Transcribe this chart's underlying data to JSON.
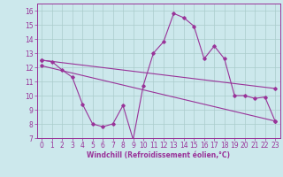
{
  "xlabel": "Windchill (Refroidissement éolien,°C)",
  "background_color": "#cce8ec",
  "grid_color": "#aacccc",
  "line_color": "#993399",
  "spine_color": "#993399",
  "xlim": [
    -0.5,
    23.5
  ],
  "ylim": [
    7,
    16.5
  ],
  "yticks": [
    7,
    8,
    9,
    10,
    11,
    12,
    13,
    14,
    15,
    16
  ],
  "xticks": [
    0,
    1,
    2,
    3,
    4,
    5,
    6,
    7,
    8,
    9,
    10,
    11,
    12,
    13,
    14,
    15,
    16,
    17,
    18,
    19,
    20,
    21,
    22,
    23
  ],
  "series1_x": [
    0,
    1,
    2,
    3,
    4,
    5,
    6,
    7,
    8,
    9,
    10,
    11,
    12,
    13,
    14,
    15,
    16,
    17,
    18,
    19,
    20,
    21,
    22,
    23
  ],
  "series1_y": [
    12.5,
    12.4,
    11.8,
    11.3,
    9.4,
    8.0,
    7.8,
    8.0,
    9.3,
    6.9,
    10.7,
    13.0,
    13.8,
    15.8,
    15.5,
    14.9,
    12.6,
    13.5,
    12.6,
    10.0,
    10.0,
    9.8,
    9.9,
    8.2
  ],
  "series2_x": [
    0,
    23
  ],
  "series2_y": [
    12.5,
    10.5
  ],
  "series3_x": [
    0,
    23
  ],
  "series3_y": [
    12.1,
    8.2
  ],
  "tick_fontsize": 5.5,
  "xlabel_fontsize": 5.5
}
